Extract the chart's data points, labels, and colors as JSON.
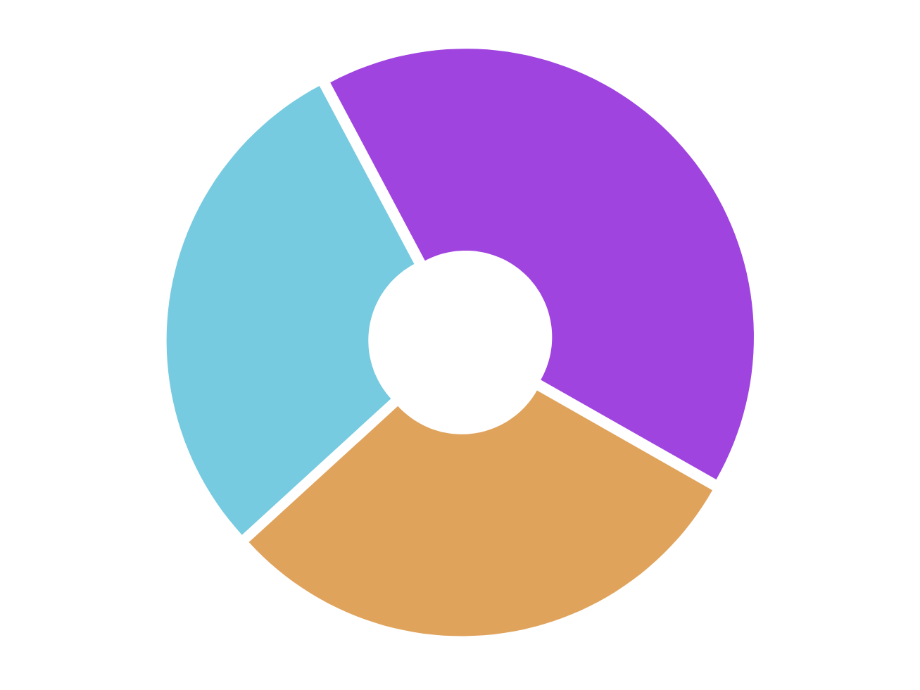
{
  "chart_data": {
    "type": "donut",
    "categories": [
      null,
      null,
      null
    ],
    "values": [
      41,
      30,
      29
    ],
    "colors": [
      "#a044e0",
      "#e0a35c",
      "#76cbe0"
    ]
  }
}
